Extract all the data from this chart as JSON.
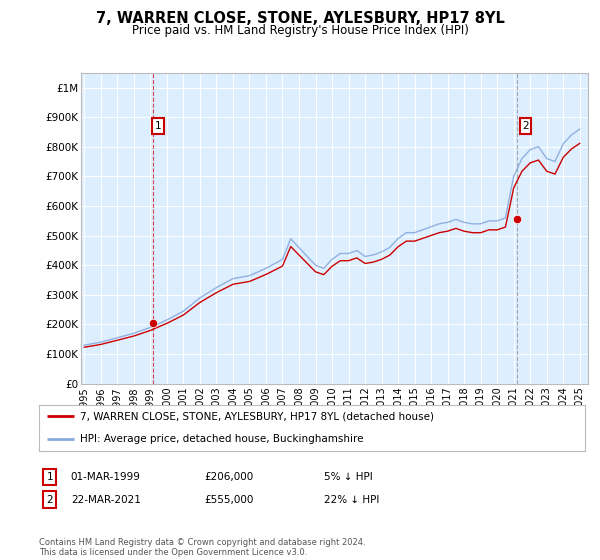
{
  "title": "7, WARREN CLOSE, STONE, AYLESBURY, HP17 8YL",
  "subtitle": "Price paid vs. HM Land Registry's House Price Index (HPI)",
  "footer": "Contains HM Land Registry data © Crown copyright and database right 2024.\nThis data is licensed under the Open Government Licence v3.0.",
  "legend_line1": "7, WARREN CLOSE, STONE, AYLESBURY, HP17 8YL (detached house)",
  "legend_line2": "HPI: Average price, detached house, Buckinghamshire",
  "sale1_label": "1",
  "sale1_date": "01-MAR-1999",
  "sale1_price": "£206,000",
  "sale1_hpi": "5% ↓ HPI",
  "sale2_label": "2",
  "sale2_date": "22-MAR-2021",
  "sale2_price": "£555,000",
  "sale2_hpi": "22% ↓ HPI",
  "background_color": "#ffffff",
  "plot_bg_color": "#ddeeff",
  "line_color_property": "#cc0000",
  "line_color_hpi": "#88aadd",
  "sale_marker_color": "#cc0000",
  "ylim": [
    0,
    1050000
  ],
  "yticks": [
    0,
    100000,
    200000,
    300000,
    400000,
    500000,
    600000,
    700000,
    800000,
    900000,
    1000000
  ],
  "ytick_labels": [
    "£0",
    "£100K",
    "£200K",
    "£300K",
    "£400K",
    "£500K",
    "£600K",
    "£700K",
    "£800K",
    "£900K",
    "£1M"
  ],
  "sale1_x": 1999.17,
  "sale1_y": 206000,
  "sale2_x": 2021.22,
  "sale2_y": 555000,
  "vline1_x": 1999.17,
  "vline2_x": 2021.22,
  "xlim_left": 1994.8,
  "xlim_right": 2025.5,
  "xtick_years": [
    1995,
    1996,
    1997,
    1998,
    1999,
    2000,
    2001,
    2002,
    2003,
    2004,
    2005,
    2006,
    2007,
    2008,
    2009,
    2010,
    2011,
    2012,
    2013,
    2014,
    2015,
    2016,
    2017,
    2018,
    2019,
    2020,
    2021,
    2022,
    2023,
    2024,
    2025
  ]
}
